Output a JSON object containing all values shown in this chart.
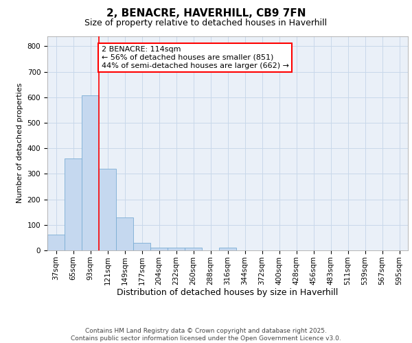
{
  "title_line1": "2, BENACRE, HAVERHILL, CB9 7FN",
  "title_line2": "Size of property relative to detached houses in Haverhill",
  "xlabel": "Distribution of detached houses by size in Haverhill",
  "ylabel": "Number of detached properties",
  "footer_line1": "Contains HM Land Registry data © Crown copyright and database right 2025.",
  "footer_line2": "Contains public sector information licensed under the Open Government Licence v3.0.",
  "categories": [
    "37sqm",
    "65sqm",
    "93sqm",
    "121sqm",
    "149sqm",
    "177sqm",
    "204sqm",
    "232sqm",
    "260sqm",
    "288sqm",
    "316sqm",
    "344sqm",
    "372sqm",
    "400sqm",
    "428sqm",
    "456sqm",
    "483sqm",
    "511sqm",
    "539sqm",
    "567sqm",
    "595sqm"
  ],
  "values": [
    62,
    360,
    608,
    320,
    130,
    30,
    10,
    10,
    10,
    0,
    10,
    0,
    0,
    0,
    0,
    0,
    0,
    0,
    0,
    0,
    0
  ],
  "bar_color": "#c5d8ef",
  "bar_edge_color": "#7aadd4",
  "grid_color": "#c8d8ea",
  "background_color": "#e8f0f8",
  "plot_bg_color": "#eaf0f8",
  "red_line_x": 2.5,
  "annotation_text": "2 BENACRE: 114sqm\n← 56% of detached houses are smaller (851)\n44% of semi-detached houses are larger (662) →",
  "ylim": [
    0,
    840
  ],
  "yticks": [
    0,
    100,
    200,
    300,
    400,
    500,
    600,
    700,
    800
  ],
  "title1_fontsize": 11,
  "title2_fontsize": 9,
  "ylabel_fontsize": 8,
  "xlabel_fontsize": 9,
  "tick_fontsize": 7.5,
  "footer_fontsize": 6.5,
  "annot_fontsize": 8
}
